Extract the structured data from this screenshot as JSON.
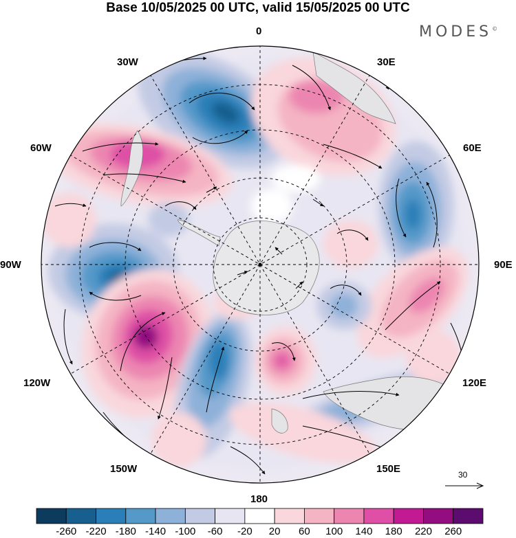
{
  "title": "Base 10/05/2025 00 UTC, valid 15/05/2025 00 UTC",
  "brand": "MODES",
  "brand_mark": "©",
  "longitude_labels": {
    "lon_0": "0",
    "lon_30e": "30E",
    "lon_60e": "60E",
    "lon_90e": "90E",
    "lon_120e": "120E",
    "lon_150e": "150E",
    "lon_180": "180",
    "lon_150w": "150W",
    "lon_120w": "120W",
    "lon_90w": "90W",
    "lon_60w": "60W",
    "lon_30w": "30W"
  },
  "reference_vector": "30",
  "colorbar": {
    "ticks": [
      "-260",
      "-220",
      "-180",
      "-140",
      "-100",
      "-60",
      "-20",
      "20",
      "60",
      "100",
      "140",
      "180",
      "220",
      "260"
    ],
    "colors": [
      "#0d3b5e",
      "#175f8e",
      "#2b7fb8",
      "#5599c9",
      "#8eb1d9",
      "#c3cbe4",
      "#e6e5f1",
      "#ffffff",
      "#f9d7dc",
      "#f4b4c3",
      "#ec86b1",
      "#de4fa5",
      "#c21a93",
      "#930c80",
      "#5c0c6f"
    ]
  },
  "chart_data": {
    "type": "heatmap",
    "projection": "south polar stereographic",
    "title": "Base 10/05/2025 00 UTC, valid 15/05/2025 00 UTC",
    "colorbar_bounds": [
      -260,
      -220,
      -180,
      -140,
      -100,
      -60,
      -20,
      20,
      60,
      100,
      140,
      180,
      220,
      260
    ],
    "meridians": [
      "0",
      "30E",
      "60E",
      "90E",
      "120E",
      "150E",
      "180",
      "150W",
      "120W",
      "90W",
      "60W",
      "30W"
    ],
    "vector_reference": 30,
    "anomaly_centers": [
      {
        "sign": "negative",
        "value": -260,
        "near": "20W"
      },
      {
        "sign": "positive",
        "value": 220,
        "near": "50W"
      },
      {
        "sign": "positive",
        "value": 140,
        "near": "20E"
      },
      {
        "sign": "negative",
        "value": -180,
        "near": "65E"
      },
      {
        "sign": "negative",
        "value": -220,
        "near": "95W"
      },
      {
        "sign": "positive",
        "value": 260,
        "near": "130W"
      },
      {
        "sign": "negative",
        "value": -220,
        "near": "155W"
      },
      {
        "sign": "positive",
        "value": 220,
        "near": "170E"
      },
      {
        "sign": "positive",
        "value": 140,
        "near": "100E"
      },
      {
        "sign": "negative",
        "value": -100,
        "near": "135E"
      },
      {
        "sign": "negative",
        "value": -60,
        "near": "130E"
      },
      {
        "sign": "positive",
        "value": 60,
        "near": "80E"
      }
    ]
  }
}
